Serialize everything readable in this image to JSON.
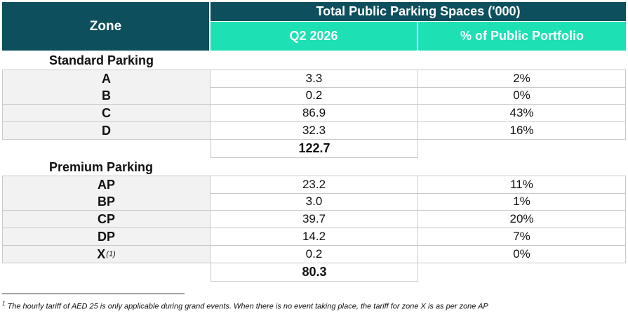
{
  "header": {
    "zone_label": "Zone",
    "group_title": "Total Public Parking Spaces ('000)",
    "col_q2": "Q2 2026",
    "col_pct": "% of Public Portfolio"
  },
  "sections": [
    {
      "title": "Standard Parking",
      "rows": [
        {
          "zone": "A",
          "value": "3.3",
          "pct": "2%"
        },
        {
          "zone": "B",
          "value": "0.2",
          "pct": "0%"
        },
        {
          "zone": "C",
          "value": "86.9",
          "pct": "43%"
        },
        {
          "zone": "D",
          "value": "32.3",
          "pct": "16%"
        }
      ],
      "total": "122.7"
    },
    {
      "title": "Premium Parking",
      "rows": [
        {
          "zone": "AP",
          "value": "23.2",
          "pct": "11%"
        },
        {
          "zone": "BP",
          "value": "3.0",
          "pct": "1%"
        },
        {
          "zone": "CP",
          "value": "39.7",
          "pct": "20%"
        },
        {
          "zone": "DP",
          "value": "14.2",
          "pct": "7%"
        },
        {
          "zone": "X",
          "zone_sup": "(1)",
          "value": "0.2",
          "pct": "0%"
        }
      ],
      "total": "80.3"
    }
  ],
  "footnote": {
    "marker": "1",
    "text": "The hourly tariff of AED 25 is only applicable during grand events. When there is no event taking place, the tariff for zone X is as per zone AP"
  },
  "colors": {
    "header_dark": "#0d4f5c",
    "header_teal": "#1de0b5",
    "zone_bg": "#f2f2f2"
  }
}
